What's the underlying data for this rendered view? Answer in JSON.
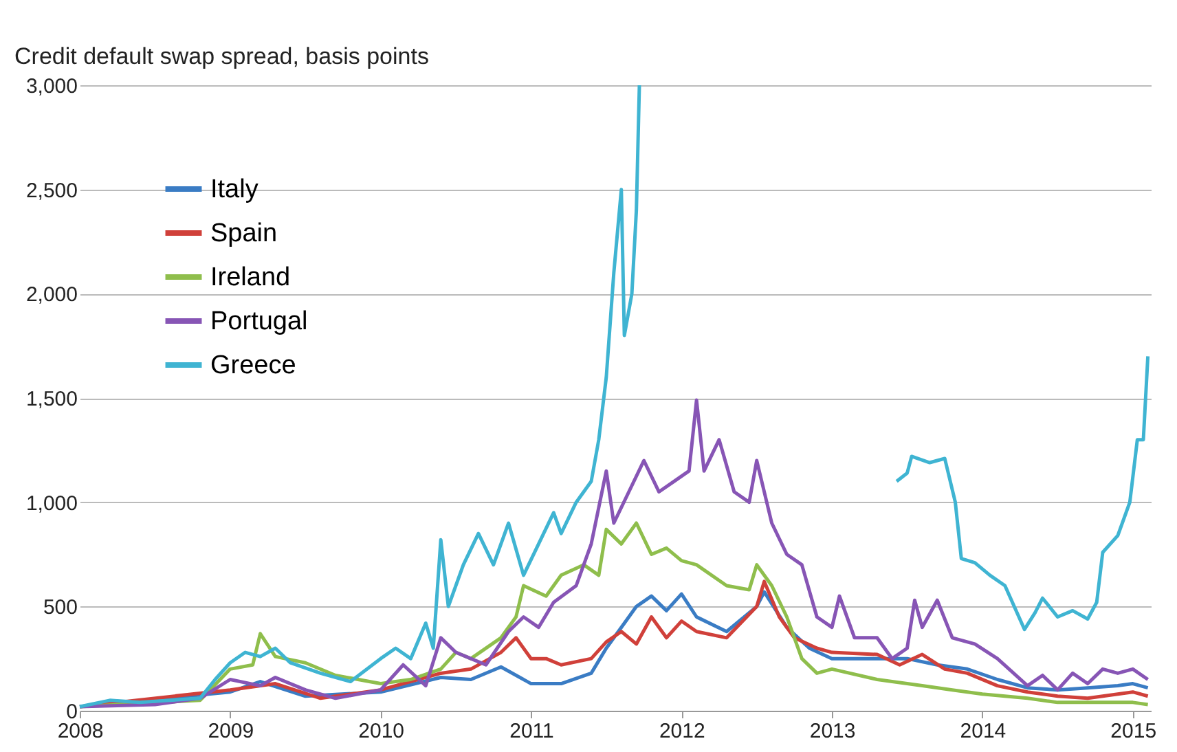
{
  "chart_data": {
    "type": "line",
    "ylabel": "Credit default swap spread, basis points",
    "xlim": [
      2008,
      2015.12
    ],
    "xticks": [
      2008,
      2009,
      2010,
      2011,
      2012,
      2013,
      2014,
      2015
    ],
    "ylim": [
      0,
      3000
    ],
    "yticks": [
      0,
      {
        "value": 500,
        "label": "500"
      },
      {
        "value": 1000,
        "label": "1,000"
      },
      {
        "value": 1500,
        "label": "1,500"
      },
      {
        "value": 2000,
        "label": "2,000"
      },
      {
        "value": 2500,
        "label": "2,500"
      },
      {
        "value": 3000,
        "label": "3,000"
      }
    ],
    "grid": "y",
    "legend": "top left",
    "line_style": "solid",
    "marker": "none",
    "series": [
      {
        "name": "Italy",
        "color": "#3a7cc4",
        "x": [
          2008,
          2009,
          2009.2,
          2009.5,
          2010,
          2010.4,
          2010.6,
          2010.8,
          2011,
          2011.2,
          2011.4,
          2011.5,
          2011.6,
          2011.7,
          2011.8,
          2011.9,
          2012,
          2012.1,
          2012.3,
          2012.5,
          2012.55,
          2012.7,
          2012.85,
          2013,
          2013.3,
          2013.5,
          2013.7,
          2013.9,
          2014.1,
          2014.3,
          2014.5,
          2014.7,
          2014.9,
          2015,
          2015.1
        ],
        "values": [
          20,
          90,
          140,
          70,
          90,
          160,
          150,
          210,
          130,
          130,
          180,
          300,
          400,
          500,
          550,
          480,
          560,
          450,
          380,
          500,
          570,
          400,
          300,
          250,
          250,
          250,
          220,
          200,
          150,
          110,
          100,
          110,
          120,
          130,
          110
        ]
      },
      {
        "name": "Spain",
        "color": "#d0403a",
        "x": [
          2008,
          2009,
          2009.3,
          2009.6,
          2010,
          2010.4,
          2010.6,
          2010.8,
          2010.9,
          2011,
          2011.1,
          2011.2,
          2011.4,
          2011.5,
          2011.6,
          2011.7,
          2011.8,
          2011.9,
          2012,
          2012.1,
          2012.3,
          2012.5,
          2012.55,
          2012.65,
          2012.75,
          2012.9,
          2013,
          2013.3,
          2013.45,
          2013.6,
          2013.75,
          2013.9,
          2014.1,
          2014.3,
          2014.5,
          2014.7,
          2014.9,
          2015,
          2015.1
        ],
        "values": [
          20,
          100,
          130,
          60,
          100,
          180,
          200,
          280,
          350,
          250,
          250,
          220,
          250,
          330,
          380,
          320,
          450,
          350,
          430,
          380,
          350,
          500,
          620,
          450,
          350,
          300,
          280,
          270,
          220,
          270,
          200,
          180,
          120,
          90,
          70,
          60,
          80,
          90,
          70
        ]
      },
      {
        "name": "Ireland",
        "color": "#8fbe4c",
        "x": [
          2008,
          2008.8,
          2009,
          2009.15,
          2009.2,
          2009.3,
          2009.5,
          2009.7,
          2010,
          2010.2,
          2010.4,
          2010.5,
          2010.6,
          2010.8,
          2010.9,
          2010.95,
          2011.1,
          2011.2,
          2011.35,
          2011.45,
          2011.5,
          2011.6,
          2011.7,
          2011.8,
          2011.9,
          2012,
          2012.1,
          2012.3,
          2012.45,
          2012.5,
          2012.6,
          2012.7,
          2012.8,
          2012.9,
          2013,
          2013.3,
          2013.6,
          2013.8,
          2014,
          2014.3,
          2014.5,
          2014.8,
          2015,
          2015.1
        ],
        "values": [
          20,
          50,
          200,
          220,
          370,
          260,
          230,
          170,
          130,
          150,
          200,
          280,
          250,
          350,
          450,
          600,
          550,
          650,
          700,
          650,
          870,
          800,
          900,
          750,
          780,
          720,
          700,
          600,
          580,
          700,
          600,
          450,
          250,
          180,
          200,
          150,
          120,
          100,
          80,
          60,
          40,
          40,
          40,
          30
        ]
      },
      {
        "name": "Portugal",
        "color": "#8755b5",
        "x": [
          2008,
          2008.5,
          2008.8,
          2009,
          2009.2,
          2009.3,
          2009.5,
          2009.7,
          2010,
          2010.15,
          2010.3,
          2010.4,
          2010.5,
          2010.6,
          2010.7,
          2010.85,
          2010.95,
          2011.05,
          2011.15,
          2011.3,
          2011.4,
          2011.5,
          2011.55,
          2011.65,
          2011.75,
          2011.85,
          2011.95,
          2012.05,
          2012.1,
          2012.15,
          2012.25,
          2012.35,
          2012.45,
          2012.5,
          2012.6,
          2012.7,
          2012.8,
          2012.9,
          2013,
          2013.05,
          2013.15,
          2013.3,
          2013.4,
          2013.5,
          2013.55,
          2013.6,
          2013.7,
          2013.8,
          2013.95,
          2014.1,
          2014.3,
          2014.4,
          2014.5,
          2014.6,
          2014.7,
          2014.8,
          2014.9,
          2015,
          2015.1
        ],
        "values": [
          20,
          30,
          60,
          150,
          120,
          160,
          100,
          60,
          100,
          220,
          120,
          350,
          280,
          250,
          220,
          380,
          450,
          400,
          520,
          600,
          800,
          1150,
          900,
          1050,
          1200,
          1050,
          1100,
          1150,
          1490,
          1150,
          1300,
          1050,
          1000,
          1200,
          900,
          750,
          700,
          450,
          400,
          550,
          350,
          350,
          250,
          300,
          530,
          400,
          530,
          350,
          320,
          250,
          120,
          170,
          100,
          180,
          130,
          200,
          180,
          200,
          150
        ]
      },
      {
        "name": "Greece",
        "color": "#3fb4d2",
        "x": [
          2008,
          2008.2,
          2008.4,
          2008.6,
          2008.8,
          2008.9,
          2009,
          2009.1,
          2009.2,
          2009.3,
          2009.4,
          2009.6,
          2009.8,
          2010,
          2010.1,
          2010.2,
          2010.3,
          2010.35,
          2010.4,
          2010.45,
          2010.55,
          2010.65,
          2010.75,
          2010.85,
          2010.95,
          2011.05,
          2011.15,
          2011.2,
          2011.3,
          2011.4,
          2011.45,
          2011.5,
          2011.55,
          2011.6,
          2011.62,
          2011.67,
          2011.7,
          2011.72,
          2012.5,
          2013.43,
          2013.5,
          2013.53,
          2013.65,
          2013.75,
          2013.82,
          2013.86,
          2013.95,
          2014.05,
          2014.15,
          2014.28,
          2014.35,
          2014.4,
          2014.5,
          2014.6,
          2014.7,
          2014.76,
          2014.8,
          2014.9,
          2014.98,
          2015.03,
          2015.07,
          2015.1
        ],
        "values": [
          20,
          50,
          40,
          50,
          60,
          150,
          230,
          280,
          260,
          300,
          230,
          180,
          140,
          250,
          300,
          250,
          420,
          300,
          820,
          500,
          700,
          850,
          700,
          900,
          650,
          800,
          950,
          850,
          1000,
          1100,
          1300,
          1600,
          2100,
          2500,
          1800,
          2000,
          2400,
          3000,
          null,
          1100,
          1140,
          1220,
          1190,
          1210,
          1000,
          730,
          710,
          650,
          600,
          390,
          470,
          540,
          450,
          480,
          440,
          520,
          760,
          840,
          1000,
          1300,
          1300,
          1700
        ]
      }
    ]
  }
}
